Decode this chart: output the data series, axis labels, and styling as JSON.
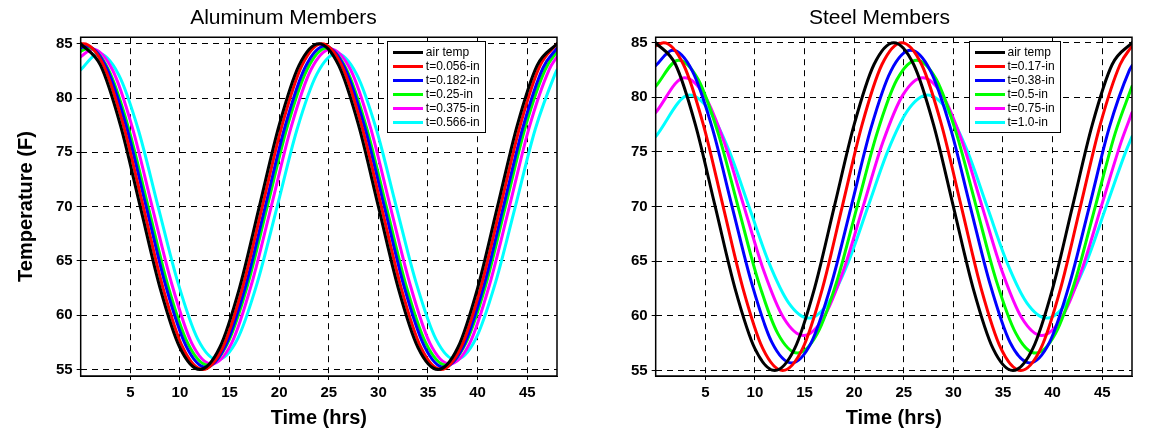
{
  "chart_data": [
    {
      "type": "line",
      "title": "Aluminum Members",
      "xlabel": "Time (hrs)",
      "ylabel": "Temperature (F)",
      "xlim": [
        0,
        48
      ],
      "xticks": [
        5,
        10,
        15,
        20,
        25,
        30,
        35,
        40,
        45
      ],
      "ylim": [
        54.4,
        85.6
      ],
      "yticks": [
        55,
        60,
        65,
        70,
        75,
        80,
        85
      ],
      "grid": true,
      "legend": "top right",
      "marker": "none",
      "line_style": "solid",
      "series": [
        {
          "name": "air temp",
          "color": "#000000",
          "x": [
            0,
            2,
            4,
            6,
            8,
            10,
            12,
            14,
            16,
            18,
            20,
            22,
            24,
            26,
            28,
            30,
            32,
            34,
            36,
            38,
            40,
            42,
            44,
            46,
            48
          ],
          "values": [
            85,
            83,
            77.5,
            70,
            62.5,
            57,
            55,
            57,
            62.5,
            70,
            77.5,
            83,
            85,
            83,
            77.5,
            70,
            62.5,
            57,
            55,
            57,
            62.5,
            70,
            77.5,
            83,
            85
          ]
        },
        {
          "name": "t=0.056-in",
          "color": "#ff0000",
          "x": [
            0,
            0.3,
            2.3,
            4.3,
            6.3,
            8.3,
            10.3,
            12.3,
            14.3,
            16.3,
            18.3,
            20.3,
            22.3,
            24.3,
            26.3,
            28.3,
            30.3,
            32.3,
            34.3,
            36.3,
            38.3,
            40.3,
            42.3,
            44.3,
            46.3,
            48
          ],
          "values": [
            85,
            85,
            83,
            77.5,
            70,
            62.5,
            57,
            55,
            57,
            62.5,
            70,
            77.5,
            83,
            85,
            83,
            77.5,
            70,
            62.5,
            57,
            55,
            57,
            62.5,
            70,
            77.5,
            83,
            85
          ]
        },
        {
          "name": "t=0.182-in",
          "color": "#0000ff",
          "x": [
            0,
            0.6,
            2.6,
            4.6,
            6.6,
            8.6,
            10.6,
            12.6,
            14.6,
            16.6,
            18.6,
            20.6,
            22.6,
            24.6,
            26.6,
            28.6,
            30.6,
            32.6,
            34.6,
            36.6,
            38.6,
            40.6,
            42.6,
            44.6,
            46.6,
            48
          ],
          "values": [
            84.6,
            84.8,
            82.8,
            77.4,
            70,
            62.6,
            57.2,
            55.2,
            57.2,
            62.6,
            70,
            77.4,
            82.8,
            84.8,
            82.8,
            77.4,
            70,
            62.6,
            57.2,
            55.2,
            57.2,
            62.6,
            70,
            77.4,
            82.8,
            84.6
          ]
        },
        {
          "name": "t=0.25-in",
          "color": "#00ff00",
          "x": [
            0,
            0.8,
            2.8,
            4.8,
            6.8,
            8.8,
            10.8,
            12.8,
            14.8,
            16.8,
            18.8,
            20.8,
            22.8,
            24.8,
            26.8,
            28.8,
            30.8,
            32.8,
            34.8,
            36.8,
            38.8,
            40.8,
            42.8,
            44.8,
            46.8,
            48
          ],
          "values": [
            84.3,
            84.6,
            82.6,
            77.3,
            70,
            62.7,
            57.4,
            55.4,
            57.4,
            62.7,
            70,
            77.3,
            82.6,
            84.6,
            82.6,
            77.3,
            70,
            62.7,
            57.4,
            55.4,
            57.4,
            62.7,
            70,
            77.3,
            82.6,
            84.3
          ]
        },
        {
          "name": "t=0.375-in",
          "color": "#ff00ff",
          "x": [
            0,
            1.2,
            3.2,
            5.2,
            7.2,
            9.2,
            11.2,
            13.2,
            15.2,
            17.2,
            19.2,
            21.2,
            23.2,
            25.2,
            27.2,
            29.2,
            31.2,
            33.2,
            35.2,
            37.2,
            39.2,
            41.2,
            43.2,
            45.2,
            47.2,
            48
          ],
          "values": [
            83.8,
            84.5,
            82.6,
            77.3,
            70,
            62.8,
            57.4,
            55.5,
            57.4,
            62.8,
            70,
            77.3,
            82.6,
            84.5,
            82.6,
            77.3,
            70,
            62.8,
            57.4,
            55.5,
            57.4,
            62.8,
            70,
            77.3,
            82.6,
            83.8
          ]
        },
        {
          "name": "t=0.566-in",
          "color": "#00ffff",
          "x": [
            0,
            1.8,
            3.8,
            5.8,
            7.8,
            9.8,
            11.8,
            13.8,
            15.8,
            17.8,
            19.8,
            21.8,
            23.8,
            25.8,
            27.8,
            29.8,
            31.8,
            33.8,
            35.8,
            37.8,
            39.8,
            41.8,
            43.8,
            45.8,
            47.8,
            48
          ],
          "values": [
            82.6,
            84.1,
            82.2,
            77.1,
            70,
            63,
            57.8,
            55.9,
            57.8,
            63,
            70,
            77.1,
            82.2,
            84.1,
            82.2,
            77.1,
            70,
            63,
            57.8,
            55.9,
            57.8,
            63,
            70,
            77.1,
            82.2,
            82.6
          ]
        }
      ]
    },
    {
      "type": "line",
      "title": "Steel Members",
      "xlabel": "Time (hrs)",
      "xlim": [
        0,
        48
      ],
      "xticks": [
        5,
        10,
        15,
        20,
        25,
        30,
        35,
        40,
        45
      ],
      "ylim": [
        54.5,
        85.5
      ],
      "yticks": [
        55,
        60,
        65,
        70,
        75,
        80,
        85
      ],
      "grid": true,
      "legend": "top right",
      "marker": "none",
      "line_style": "solid",
      "series": [
        {
          "name": "air temp",
          "color": "#000000",
          "x": [
            0,
            2,
            4,
            6,
            8,
            10,
            12,
            14,
            16,
            18,
            20,
            22,
            24,
            26,
            28,
            30,
            32,
            34,
            36,
            38,
            40,
            42,
            44,
            46,
            48
          ],
          "values": [
            85,
            83,
            77.5,
            70,
            62.5,
            57,
            55,
            57,
            62.5,
            70,
            77.5,
            83,
            85,
            83,
            77.5,
            70,
            62.5,
            57,
            55,
            57,
            62.5,
            70,
            77.5,
            83,
            85
          ]
        },
        {
          "name": "t=0.17-in",
          "color": "#ff0000",
          "x": [
            0,
            0.8,
            2.8,
            4.8,
            6.8,
            8.8,
            10.8,
            12.8,
            14.8,
            16.8,
            18.8,
            20.8,
            22.8,
            24.8,
            26.8,
            28.8,
            30.8,
            32.8,
            34.8,
            36.8,
            38.8,
            40.8,
            42.8,
            44.8,
            46.8,
            48
          ],
          "values": [
            84.7,
            85,
            83,
            77.5,
            70,
            62.5,
            57,
            55,
            57,
            62.5,
            70,
            77.5,
            83,
            85,
            83,
            77.5,
            70,
            62.5,
            57,
            55,
            57,
            62.5,
            70,
            77.5,
            83,
            84.7
          ]
        },
        {
          "name": "t=0.38-in",
          "color": "#0000ff",
          "x": [
            0,
            1.7,
            3.7,
            5.7,
            7.7,
            9.7,
            11.7,
            13.7,
            15.7,
            17.7,
            19.7,
            21.7,
            23.7,
            25.7,
            27.7,
            29.7,
            31.7,
            33.7,
            35.7,
            37.7,
            39.7,
            41.7,
            43.7,
            45.7,
            47.7,
            48
          ],
          "values": [
            82.9,
            84.3,
            82.4,
            77.2,
            70,
            62.9,
            57.6,
            55.7,
            57.6,
            62.9,
            70,
            77.2,
            82.4,
            84.3,
            82.4,
            77.2,
            70,
            62.9,
            57.6,
            55.7,
            57.6,
            62.9,
            70,
            77.2,
            82.4,
            82.9
          ]
        },
        {
          "name": "t=0.5-in",
          "color": "#00ff00",
          "x": [
            0,
            2.3,
            4.3,
            6.3,
            8.3,
            10.3,
            12.3,
            14.3,
            16.3,
            18.3,
            20.3,
            22.3,
            24.3,
            26.3,
            28.3,
            30.3,
            32.3,
            34.3,
            36.3,
            38.3,
            40.3,
            42.3,
            44.3,
            46.3,
            48
          ],
          "values": [
            81,
            83.4,
            81.6,
            76.7,
            70,
            63.3,
            58.4,
            56.6,
            58.4,
            63.3,
            70,
            76.7,
            81.6,
            83.4,
            81.6,
            76.7,
            70,
            63.3,
            58.4,
            56.6,
            58.4,
            63.3,
            70,
            76.7,
            81
          ]
        },
        {
          "name": "t=0.75-in",
          "color": "#ff00ff",
          "x": [
            0,
            2.9,
            4.9,
            6.9,
            8.9,
            10.9,
            12.9,
            14.9,
            16.9,
            18.9,
            20.9,
            22.9,
            24.9,
            26.9,
            28.9,
            30.9,
            32.9,
            34.9,
            36.9,
            38.9,
            40.9,
            42.9,
            44.9,
            46.9,
            48
          ],
          "values": [
            78.6,
            81.8,
            80.2,
            75.9,
            70,
            64.1,
            59.8,
            58.2,
            59.8,
            64.1,
            70,
            75.9,
            80.2,
            81.8,
            80.2,
            75.9,
            70,
            64.1,
            59.8,
            58.2,
            59.8,
            64.1,
            70,
            75.9,
            78.6
          ]
        },
        {
          "name": "t=1.0-in",
          "color": "#00ffff",
          "x": [
            0,
            3.4,
            5.4,
            7.4,
            9.4,
            11.4,
            13.4,
            15.4,
            17.4,
            19.4,
            21.4,
            23.4,
            25.4,
            27.4,
            29.4,
            31.4,
            33.4,
            35.4,
            37.4,
            39.4,
            41.4,
            43.4,
            45.4,
            47.4,
            48
          ],
          "values": [
            76.4,
            80.2,
            78.8,
            75.1,
            70,
            64.9,
            61.2,
            59.8,
            61.2,
            64.9,
            70,
            75.1,
            78.8,
            80.2,
            78.8,
            75.1,
            70,
            64.9,
            61.2,
            59.8,
            61.2,
            64.9,
            70,
            75.1,
            76.4
          ]
        }
      ]
    }
  ]
}
